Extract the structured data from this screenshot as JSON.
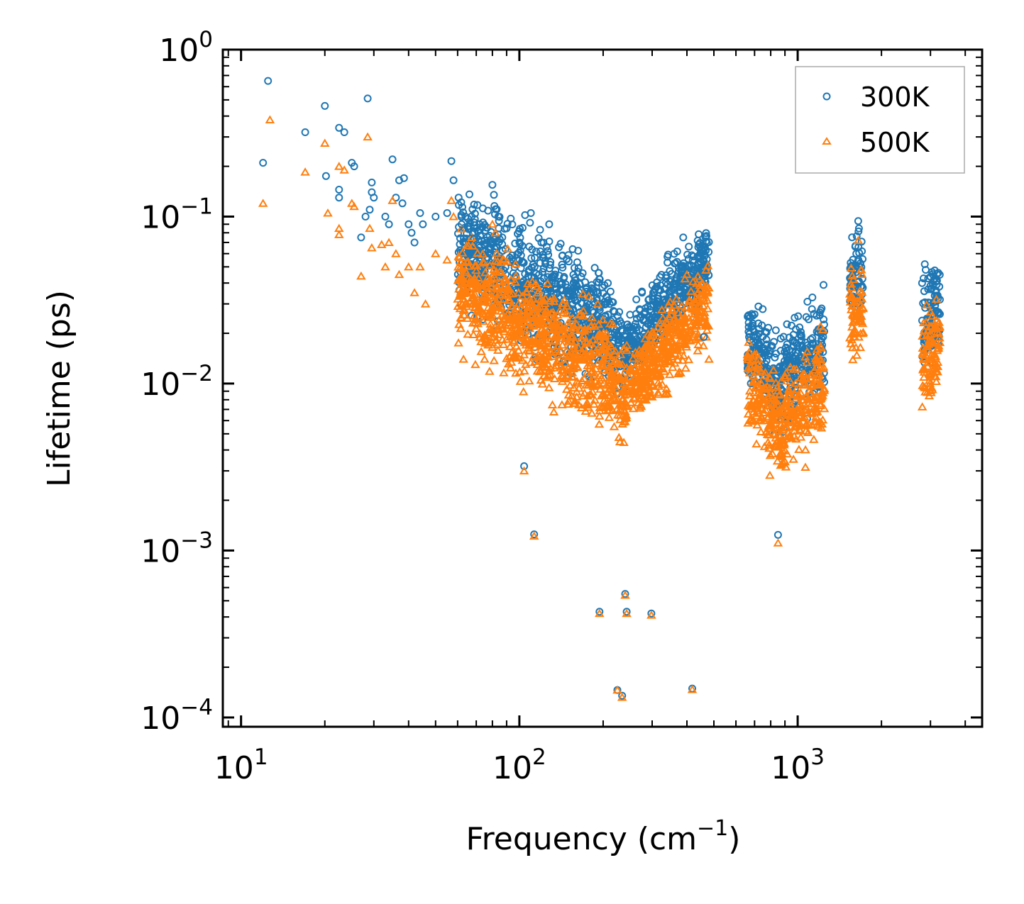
{
  "chart_data": {
    "type": "scatter",
    "xscale": "log",
    "yscale": "log",
    "xlabel": "Frequency (cm",
    "xlabel_sup": "−1",
    "xlabel_close": ")",
    "ylabel": "Lifetime (ps)",
    "xlim": [
      8.6,
      4600
    ],
    "ylim": [
      8.8e-05,
      1.0
    ],
    "legend_position": "top-right",
    "x_ticks": [
      {
        "base": "10",
        "exp": "1",
        "value": 10
      },
      {
        "base": "10",
        "exp": "2",
        "value": 100
      },
      {
        "base": "10",
        "exp": "3",
        "value": 1000
      }
    ],
    "y_ticks": [
      {
        "base": "10",
        "exp": "0",
        "value": 1
      },
      {
        "base": "10",
        "exp": "−1",
        "value": 0.1
      },
      {
        "base": "10",
        "exp": "−2",
        "value": 0.01
      },
      {
        "base": "10",
        "exp": "−3",
        "value": 0.001
      },
      {
        "base": "10",
        "exp": "−4",
        "value": 0.0001
      }
    ],
    "series": [
      {
        "name": "300K",
        "marker": "circle",
        "color": "#1f77b4",
        "points": [
          [
            12.5,
            0.65
          ],
          [
            12.0,
            0.21
          ],
          [
            17.0,
            0.32
          ],
          [
            20.0,
            0.46
          ],
          [
            20.2,
            0.175
          ],
          [
            22.5,
            0.34
          ],
          [
            23.5,
            0.32
          ],
          [
            22.5,
            0.145
          ],
          [
            22.5,
            0.13
          ],
          [
            25.0,
            0.21
          ],
          [
            25.5,
            0.2
          ],
          [
            28.5,
            0.51
          ],
          [
            29.5,
            0.16
          ],
          [
            29.5,
            0.14
          ],
          [
            30.0,
            0.13
          ],
          [
            29.0,
            0.11
          ],
          [
            28.0,
            0.1
          ],
          [
            27.0,
            0.075
          ],
          [
            33.0,
            0.1
          ],
          [
            34.0,
            0.09
          ],
          [
            35.0,
            0.22
          ],
          [
            36.0,
            0.13
          ],
          [
            37.0,
            0.165
          ],
          [
            38.5,
            0.17
          ],
          [
            38.0,
            0.12
          ],
          [
            40.0,
            0.09
          ],
          [
            41.0,
            0.08
          ],
          [
            42.0,
            0.07
          ],
          [
            44.0,
            0.105
          ],
          [
            45.0,
            0.09
          ],
          [
            50.0,
            0.1
          ],
          [
            55.0,
            0.105
          ],
          [
            57.0,
            0.215
          ],
          [
            58.0,
            0.165
          ],
          [
            60.5,
            0.13
          ],
          [
            62.0,
            0.09
          ],
          [
            64.0,
            0.1
          ],
          [
            68.0,
            0.08
          ],
          [
            72.0,
            0.09
          ],
          [
            80.0,
            0.155
          ],
          [
            81.0,
            0.135
          ],
          [
            84.0,
            0.1
          ],
          [
            90.0,
            0.085
          ],
          [
            100.0,
            0.07
          ],
          [
            110.0,
            0.105
          ],
          [
            120.0,
            0.07
          ],
          [
            128.0,
            0.09
          ],
          [
            104.0,
            0.0032
          ],
          [
            113.0,
            0.00125
          ],
          [
            194.0,
            0.00043
          ],
          [
            225.0,
            0.000146
          ],
          [
            234.0,
            0.000135
          ],
          [
            240.0,
            0.00055
          ],
          [
            243.0,
            0.00043
          ],
          [
            298.0,
            0.00042
          ],
          [
            418.0,
            0.000149
          ],
          [
            850.0,
            0.00124
          ],
          [
            388.0,
            0.075
          ],
          [
            700.0,
            0.026
          ],
          [
            460.0,
            0.019
          ],
          [
            1650.0,
            0.094
          ],
          [
            1660.0,
            0.085
          ],
          [
            2800.0,
            0.04
          ],
          [
            3200.0,
            0.046
          ]
        ]
      },
      {
        "name": "500K",
        "marker": "triangle",
        "color": "#ff7f0e",
        "points": [
          [
            12.0,
            0.12
          ],
          [
            12.7,
            0.38
          ],
          [
            17.0,
            0.185
          ],
          [
            20.0,
            0.275
          ],
          [
            20.5,
            0.105
          ],
          [
            22.5,
            0.2
          ],
          [
            22.5,
            0.085
          ],
          [
            22.5,
            0.078
          ],
          [
            23.5,
            0.19
          ],
          [
            25.0,
            0.12
          ],
          [
            25.5,
            0.115
          ],
          [
            27.0,
            0.044
          ],
          [
            28.5,
            0.3
          ],
          [
            29.0,
            0.085
          ],
          [
            29.5,
            0.065
          ],
          [
            32.0,
            0.068
          ],
          [
            33.0,
            0.05
          ],
          [
            34.0,
            0.07
          ],
          [
            35.0,
            0.125
          ],
          [
            36.0,
            0.06
          ],
          [
            37.0,
            0.045
          ],
          [
            40.0,
            0.05
          ],
          [
            42.0,
            0.035
          ],
          [
            44.0,
            0.05
          ],
          [
            46.0,
            0.03
          ],
          [
            50.0,
            0.06
          ],
          [
            55.0,
            0.055
          ],
          [
            57.0,
            0.125
          ],
          [
            58.0,
            0.1
          ],
          [
            62.0,
            0.04
          ],
          [
            63.0,
            0.014
          ],
          [
            75.0,
            0.014
          ],
          [
            80.0,
            0.09
          ],
          [
            82.0,
            0.08
          ],
          [
            88.0,
            0.055
          ],
          [
            104.0,
            0.003
          ],
          [
            113.0,
            0.00122
          ],
          [
            194.0,
            0.00042
          ],
          [
            225.0,
            0.000146
          ],
          [
            234.0,
            0.000132
          ],
          [
            240.0,
            0.00054
          ],
          [
            243.0,
            0.00042
          ],
          [
            298.0,
            0.00041
          ],
          [
            418.0,
            0.000147
          ],
          [
            850.0,
            0.00111
          ],
          [
            400.0,
            0.045
          ],
          [
            480.0,
            0.014
          ],
          [
            700.0,
            0.015
          ],
          [
            900.0,
            0.0034
          ],
          [
            1650.0,
            0.072
          ],
          [
            3150.0,
            0.032
          ]
        ]
      }
    ],
    "dense_bands": [
      {
        "x_from": 60,
        "x_to": 200,
        "center": [
          0.065,
          0.022
        ],
        "spread": 0.16
      },
      {
        "x_from": 200,
        "x_to": 235,
        "center": [
          0.022,
          0.015
        ],
        "spread": 0.14
      },
      {
        "x_from": 235,
        "x_to": 480,
        "center": [
          0.015,
          0.058
        ],
        "spread": 0.11
      },
      {
        "x_from": 660,
        "x_to": 860,
        "center": [
          0.018,
          0.01
        ],
        "spread": 0.13
      },
      {
        "x_from": 860,
        "x_to": 1250,
        "center": [
          0.01,
          0.018
        ],
        "spread": 0.14
      },
      {
        "x_from": 1540,
        "x_to": 1720,
        "center": [
          0.045,
          0.045
        ],
        "spread": 0.12
      },
      {
        "x_from": 2800,
        "x_to": 3250,
        "center": [
          0.026,
          0.03
        ],
        "spread": 0.14
      }
    ],
    "dense_band_ratio_500K": 0.55
  }
}
